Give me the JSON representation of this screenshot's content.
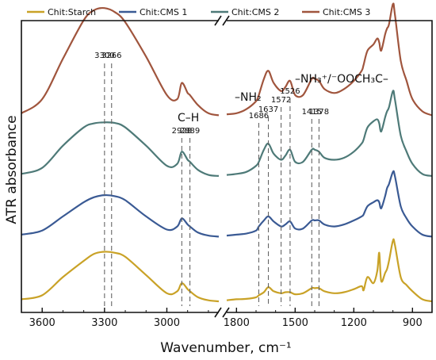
{
  "chart_data": {
    "type": "line",
    "xlabel": "Wavenumber, cm⁻¹",
    "ylabel": "ATR absorbance",
    "x_reversed": true,
    "broken_axis": true,
    "x_segments": [
      [
        3700,
        2750
      ],
      [
        1850,
        800
      ]
    ],
    "xticks": [
      3600,
      3300,
      3000,
      1800,
      1500,
      1200,
      900
    ],
    "grid": false,
    "legend_position": "top",
    "series": [
      {
        "name": "Chit:Starch",
        "color": "#C9A227",
        "offset": 0,
        "x": [
          3700,
          3600,
          3500,
          3400,
          3350,
          3300,
          3250,
          3200,
          3100,
          3000,
          2950,
          2928,
          2900,
          2889,
          2850,
          2800,
          2750,
          1850,
          1800,
          1750,
          1700,
          1686,
          1660,
          1637,
          1610,
          1572,
          1550,
          1526,
          1500,
          1460,
          1415,
          1400,
          1378,
          1350,
          1300,
          1250,
          1200,
          1160,
          1150,
          1130,
          1100,
          1080,
          1070,
          1060,
          1040,
          1030,
          1020,
          1000,
          990,
          960,
          930,
          900,
          850,
          800
        ],
        "y": [
          0.01,
          0.03,
          0.12,
          0.2,
          0.235,
          0.245,
          0.24,
          0.22,
          0.13,
          0.04,
          0.05,
          0.09,
          0.06,
          0.05,
          0.02,
          0.005,
          0.0,
          0.005,
          0.01,
          0.012,
          0.02,
          0.03,
          0.045,
          0.07,
          0.05,
          0.04,
          0.045,
          0.045,
          0.035,
          0.04,
          0.065,
          0.065,
          0.065,
          0.05,
          0.04,
          0.045,
          0.06,
          0.075,
          0.055,
          0.12,
          0.09,
          0.15,
          0.24,
          0.1,
          0.14,
          0.16,
          0.2,
          0.3,
          0.28,
          0.12,
          0.08,
          0.05,
          0.01,
          0.0
        ]
      },
      {
        "name": "Chit:CMS 1",
        "color": "#3A5A94",
        "offset": 0.32,
        "x": [
          3700,
          3600,
          3500,
          3400,
          3350,
          3300,
          3250,
          3200,
          3100,
          3000,
          2950,
          2928,
          2900,
          2889,
          2850,
          2800,
          2750,
          1850,
          1800,
          1750,
          1700,
          1686,
          1660,
          1637,
          1610,
          1572,
          1550,
          1526,
          1500,
          1460,
          1415,
          1400,
          1378,
          1350,
          1300,
          1250,
          1200,
          1160,
          1150,
          1130,
          1100,
          1080,
          1070,
          1060,
          1040,
          1030,
          1020,
          1000,
          990,
          960,
          930,
          900,
          850,
          800
        ],
        "y": [
          0.01,
          0.03,
          0.1,
          0.17,
          0.195,
          0.205,
          0.2,
          0.18,
          0.1,
          0.035,
          0.05,
          0.09,
          0.06,
          0.05,
          0.02,
          0.005,
          0.0,
          0.005,
          0.01,
          0.015,
          0.03,
          0.05,
          0.08,
          0.1,
          0.075,
          0.05,
          0.06,
          0.075,
          0.04,
          0.04,
          0.08,
          0.08,
          0.08,
          0.06,
          0.05,
          0.06,
          0.08,
          0.1,
          0.11,
          0.15,
          0.17,
          0.18,
          0.17,
          0.14,
          0.2,
          0.24,
          0.26,
          0.32,
          0.3,
          0.15,
          0.09,
          0.05,
          0.01,
          0.0
        ]
      },
      {
        "name": "Chit:CMS 2",
        "color": "#4E7A78",
        "offset": 0.62,
        "x": [
          3700,
          3600,
          3500,
          3400,
          3350,
          3300,
          3250,
          3200,
          3100,
          3000,
          2950,
          2928,
          2900,
          2889,
          2850,
          2800,
          2750,
          1850,
          1800,
          1750,
          1700,
          1686,
          1660,
          1637,
          1610,
          1572,
          1550,
          1526,
          1500,
          1460,
          1415,
          1400,
          1378,
          1350,
          1300,
          1250,
          1200,
          1160,
          1150,
          1130,
          1100,
          1080,
          1070,
          1060,
          1040,
          1030,
          1020,
          1000,
          990,
          960,
          930,
          900,
          850,
          800
        ],
        "y": [
          0.01,
          0.04,
          0.15,
          0.24,
          0.26,
          0.265,
          0.262,
          0.24,
          0.15,
          0.05,
          0.06,
          0.12,
          0.08,
          0.07,
          0.03,
          0.005,
          0.0,
          0.005,
          0.01,
          0.02,
          0.05,
          0.07,
          0.13,
          0.16,
          0.11,
          0.08,
          0.1,
          0.13,
          0.07,
          0.07,
          0.13,
          0.13,
          0.12,
          0.09,
          0.08,
          0.09,
          0.12,
          0.16,
          0.18,
          0.24,
          0.27,
          0.28,
          0.26,
          0.22,
          0.29,
          0.32,
          0.34,
          0.42,
          0.38,
          0.2,
          0.12,
          0.06,
          0.01,
          0.0
        ]
      },
      {
        "name": "Chit:CMS 3",
        "color": "#A0553D",
        "offset": 0.92,
        "x": [
          3700,
          3600,
          3500,
          3400,
          3350,
          3300,
          3250,
          3200,
          3100,
          3000,
          2950,
          2928,
          2900,
          2889,
          2850,
          2800,
          2750,
          1850,
          1800,
          1750,
          1700,
          1686,
          1660,
          1637,
          1610,
          1572,
          1550,
          1526,
          1500,
          1460,
          1415,
          1400,
          1378,
          1350,
          1300,
          1250,
          1200,
          1160,
          1150,
          1130,
          1100,
          1080,
          1070,
          1060,
          1040,
          1030,
          1020,
          1000,
          990,
          960,
          930,
          900,
          850,
          800
        ],
        "y": [
          0.01,
          0.08,
          0.28,
          0.47,
          0.52,
          0.53,
          0.51,
          0.46,
          0.29,
          0.1,
          0.08,
          0.16,
          0.11,
          0.1,
          0.05,
          0.01,
          0.0,
          0.005,
          0.01,
          0.03,
          0.07,
          0.1,
          0.18,
          0.22,
          0.16,
          0.12,
          0.14,
          0.17,
          0.1,
          0.1,
          0.18,
          0.18,
          0.17,
          0.13,
          0.11,
          0.13,
          0.17,
          0.22,
          0.25,
          0.32,
          0.35,
          0.38,
          0.36,
          0.32,
          0.4,
          0.43,
          0.45,
          0.55,
          0.5,
          0.27,
          0.17,
          0.08,
          0.02,
          0.0
        ]
      }
    ],
    "annotations": [
      {
        "x": 3300,
        "label": "3300",
        "segment": 0
      },
      {
        "x": 3266,
        "label": "3266",
        "segment": 0
      },
      {
        "x": 2928,
        "label": "2928",
        "segment": 0
      },
      {
        "x": 2889,
        "label": "2889",
        "segment": 0
      },
      {
        "x": 1686,
        "label": "1686",
        "segment": 1
      },
      {
        "x": 1637,
        "label": "1637",
        "segment": 1
      },
      {
        "x": 1572,
        "label": "1572",
        "segment": 1
      },
      {
        "x": 1526,
        "label": "1526",
        "segment": 1
      },
      {
        "x": 1415,
        "label": "1415",
        "segment": 1
      },
      {
        "x": 1378,
        "label": "1378",
        "segment": 1
      }
    ],
    "group_labels": [
      {
        "label": "C–H"
      },
      {
        "label": "–NH₂"
      },
      {
        "label": "–NH₃⁺/⁻OOCH₃C–"
      }
    ]
  }
}
